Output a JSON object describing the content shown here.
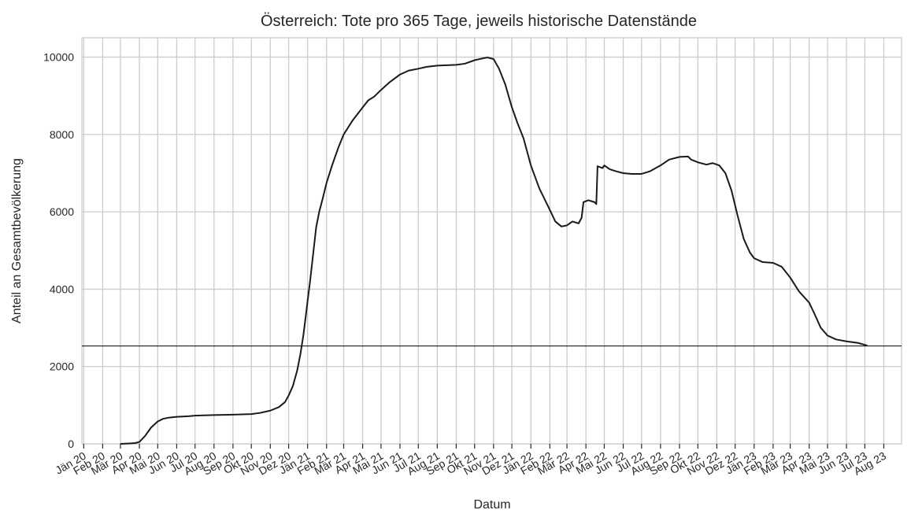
{
  "chart_data": {
    "type": "line",
    "title": "Österreich: Tote pro 365 Tage, jeweils historische Datenstände",
    "xlabel": "Datum",
    "ylabel": "Anteil an Gesamtbevölkerung",
    "ylim": [
      0,
      10500
    ],
    "xlim": [
      "2019-12-29",
      "2023-08-30"
    ],
    "grid": true,
    "yticks": [
      0,
      2000,
      4000,
      6000,
      8000,
      10000
    ],
    "xticks": [
      {
        "date": "2020-01-01",
        "label": "Jän 20"
      },
      {
        "date": "2020-02-01",
        "label": "Feb 20"
      },
      {
        "date": "2020-03-01",
        "label": "Mär 20"
      },
      {
        "date": "2020-04-01",
        "label": "Apr 20"
      },
      {
        "date": "2020-05-01",
        "label": "Mai 20"
      },
      {
        "date": "2020-06-01",
        "label": "Jun 20"
      },
      {
        "date": "2020-07-01",
        "label": "Jul 20"
      },
      {
        "date": "2020-08-01",
        "label": "Aug 20"
      },
      {
        "date": "2020-09-01",
        "label": "Sep 20"
      },
      {
        "date": "2020-10-01",
        "label": "Okt 20"
      },
      {
        "date": "2020-11-01",
        "label": "Nov 20"
      },
      {
        "date": "2020-12-01",
        "label": "Dez 20"
      },
      {
        "date": "2021-01-01",
        "label": "Jän 21"
      },
      {
        "date": "2021-02-01",
        "label": "Feb 21"
      },
      {
        "date": "2021-03-01",
        "label": "Mär 21"
      },
      {
        "date": "2021-04-01",
        "label": "Apr 21"
      },
      {
        "date": "2021-05-01",
        "label": "Mai 21"
      },
      {
        "date": "2021-06-01",
        "label": "Jun 21"
      },
      {
        "date": "2021-07-01",
        "label": "Jul 21"
      },
      {
        "date": "2021-08-01",
        "label": "Aug 21"
      },
      {
        "date": "2021-09-01",
        "label": "Sep 21"
      },
      {
        "date": "2021-10-01",
        "label": "Okt 21"
      },
      {
        "date": "2021-11-01",
        "label": "Nov 21"
      },
      {
        "date": "2021-12-01",
        "label": "Dez 21"
      },
      {
        "date": "2022-01-01",
        "label": "Jän 22"
      },
      {
        "date": "2022-02-01",
        "label": "Feb 22"
      },
      {
        "date": "2022-03-01",
        "label": "Mär 22"
      },
      {
        "date": "2022-04-01",
        "label": "Apr 22"
      },
      {
        "date": "2022-05-01",
        "label": "Mai 22"
      },
      {
        "date": "2022-06-01",
        "label": "Jun 22"
      },
      {
        "date": "2022-07-01",
        "label": "Jul 22"
      },
      {
        "date": "2022-08-01",
        "label": "Aug 22"
      },
      {
        "date": "2022-09-01",
        "label": "Sep 22"
      },
      {
        "date": "2022-10-01",
        "label": "Okt 22"
      },
      {
        "date": "2022-11-01",
        "label": "Nov 22"
      },
      {
        "date": "2022-12-01",
        "label": "Dez 22"
      },
      {
        "date": "2023-01-01",
        "label": "Jän 23"
      },
      {
        "date": "2023-02-01",
        "label": "Feb 23"
      },
      {
        "date": "2023-03-01",
        "label": "Mär 23"
      },
      {
        "date": "2023-04-01",
        "label": "Apr 23"
      },
      {
        "date": "2023-05-01",
        "label": "Mai 23"
      },
      {
        "date": "2023-06-01",
        "label": "Jun 23"
      },
      {
        "date": "2023-07-01",
        "label": "Jul 23"
      },
      {
        "date": "2023-08-01",
        "label": "Aug 23"
      }
    ],
    "hline": {
      "y": 2530,
      "color": "#000000"
    },
    "series": [
      {
        "color": "#1a1a1a",
        "points": [
          [
            "2020-03-01",
            0
          ],
          [
            "2020-03-15",
            10
          ],
          [
            "2020-03-25",
            20
          ],
          [
            "2020-04-01",
            50
          ],
          [
            "2020-04-10",
            200
          ],
          [
            "2020-04-20",
            420
          ],
          [
            "2020-05-01",
            580
          ],
          [
            "2020-05-10",
            650
          ],
          [
            "2020-05-20",
            680
          ],
          [
            "2020-06-01",
            700
          ],
          [
            "2020-06-20",
            715
          ],
          [
            "2020-07-01",
            730
          ],
          [
            "2020-08-01",
            745
          ],
          [
            "2020-09-01",
            755
          ],
          [
            "2020-10-01",
            770
          ],
          [
            "2020-10-15",
            800
          ],
          [
            "2020-11-01",
            860
          ],
          [
            "2020-11-15",
            950
          ],
          [
            "2020-11-25",
            1080
          ],
          [
            "2020-12-01",
            1250
          ],
          [
            "2020-12-08",
            1500
          ],
          [
            "2020-12-15",
            1900
          ],
          [
            "2020-12-20",
            2300
          ],
          [
            "2020-12-25",
            2800
          ],
          [
            "2020-12-29",
            3300
          ],
          [
            "2021-01-01",
            3700
          ],
          [
            "2021-01-05",
            4200
          ],
          [
            "2021-01-10",
            4900
          ],
          [
            "2021-01-15",
            5600
          ],
          [
            "2021-01-20",
            6000
          ],
          [
            "2021-01-25",
            6300
          ],
          [
            "2021-02-01",
            6750
          ],
          [
            "2021-02-10",
            7200
          ],
          [
            "2021-02-20",
            7650
          ],
          [
            "2021-03-01",
            8000
          ],
          [
            "2021-03-15",
            8350
          ],
          [
            "2021-04-01",
            8700
          ],
          [
            "2021-04-10",
            8880
          ],
          [
            "2021-04-20",
            8980
          ],
          [
            "2021-05-01",
            9150
          ],
          [
            "2021-05-15",
            9350
          ],
          [
            "2021-06-01",
            9550
          ],
          [
            "2021-06-15",
            9650
          ],
          [
            "2021-07-01",
            9700
          ],
          [
            "2021-07-15",
            9750
          ],
          [
            "2021-08-01",
            9780
          ],
          [
            "2021-09-01",
            9800
          ],
          [
            "2021-09-15",
            9830
          ],
          [
            "2021-10-01",
            9920
          ],
          [
            "2021-10-15",
            9970
          ],
          [
            "2021-10-22",
            9990
          ],
          [
            "2021-11-01",
            9950
          ],
          [
            "2021-11-10",
            9700
          ],
          [
            "2021-11-20",
            9300
          ],
          [
            "2021-12-01",
            8700
          ],
          [
            "2021-12-10",
            8300
          ],
          [
            "2021-12-20",
            7900
          ],
          [
            "2022-01-01",
            7200
          ],
          [
            "2022-01-15",
            6600
          ],
          [
            "2022-02-01",
            6050
          ],
          [
            "2022-02-10",
            5750
          ],
          [
            "2022-02-20",
            5620
          ],
          [
            "2022-03-01",
            5650
          ],
          [
            "2022-03-10",
            5750
          ],
          [
            "2022-03-20",
            5700
          ],
          [
            "2022-03-25",
            5850
          ],
          [
            "2022-03-28",
            6250
          ],
          [
            "2022-04-05",
            6300
          ],
          [
            "2022-04-15",
            6250
          ],
          [
            "2022-04-18",
            6200
          ],
          [
            "2022-04-20",
            7180
          ],
          [
            "2022-04-28",
            7130
          ],
          [
            "2022-05-01",
            7200
          ],
          [
            "2022-05-10",
            7100
          ],
          [
            "2022-05-20",
            7050
          ],
          [
            "2022-06-01",
            7000
          ],
          [
            "2022-06-15",
            6980
          ],
          [
            "2022-07-01",
            6980
          ],
          [
            "2022-07-15",
            7050
          ],
          [
            "2022-08-01",
            7200
          ],
          [
            "2022-08-15",
            7350
          ],
          [
            "2022-09-01",
            7420
          ],
          [
            "2022-09-15",
            7430
          ],
          [
            "2022-09-20",
            7350
          ],
          [
            "2022-10-01",
            7280
          ],
          [
            "2022-10-15",
            7220
          ],
          [
            "2022-10-25",
            7260
          ],
          [
            "2022-11-05",
            7200
          ],
          [
            "2022-11-15",
            7000
          ],
          [
            "2022-11-25",
            6550
          ],
          [
            "2022-12-05",
            5900
          ],
          [
            "2022-12-15",
            5300
          ],
          [
            "2022-12-25",
            4950
          ],
          [
            "2023-01-01",
            4800
          ],
          [
            "2023-01-15",
            4700
          ],
          [
            "2023-02-01",
            4680
          ],
          [
            "2023-02-15",
            4580
          ],
          [
            "2023-03-01",
            4300
          ],
          [
            "2023-03-15",
            3950
          ],
          [
            "2023-04-01",
            3650
          ],
          [
            "2023-04-10",
            3350
          ],
          [
            "2023-04-20",
            3000
          ],
          [
            "2023-05-01",
            2800
          ],
          [
            "2023-05-15",
            2700
          ],
          [
            "2023-06-01",
            2650
          ],
          [
            "2023-06-20",
            2610
          ],
          [
            "2023-07-01",
            2560
          ],
          [
            "2023-07-05",
            2540
          ]
        ]
      }
    ]
  }
}
